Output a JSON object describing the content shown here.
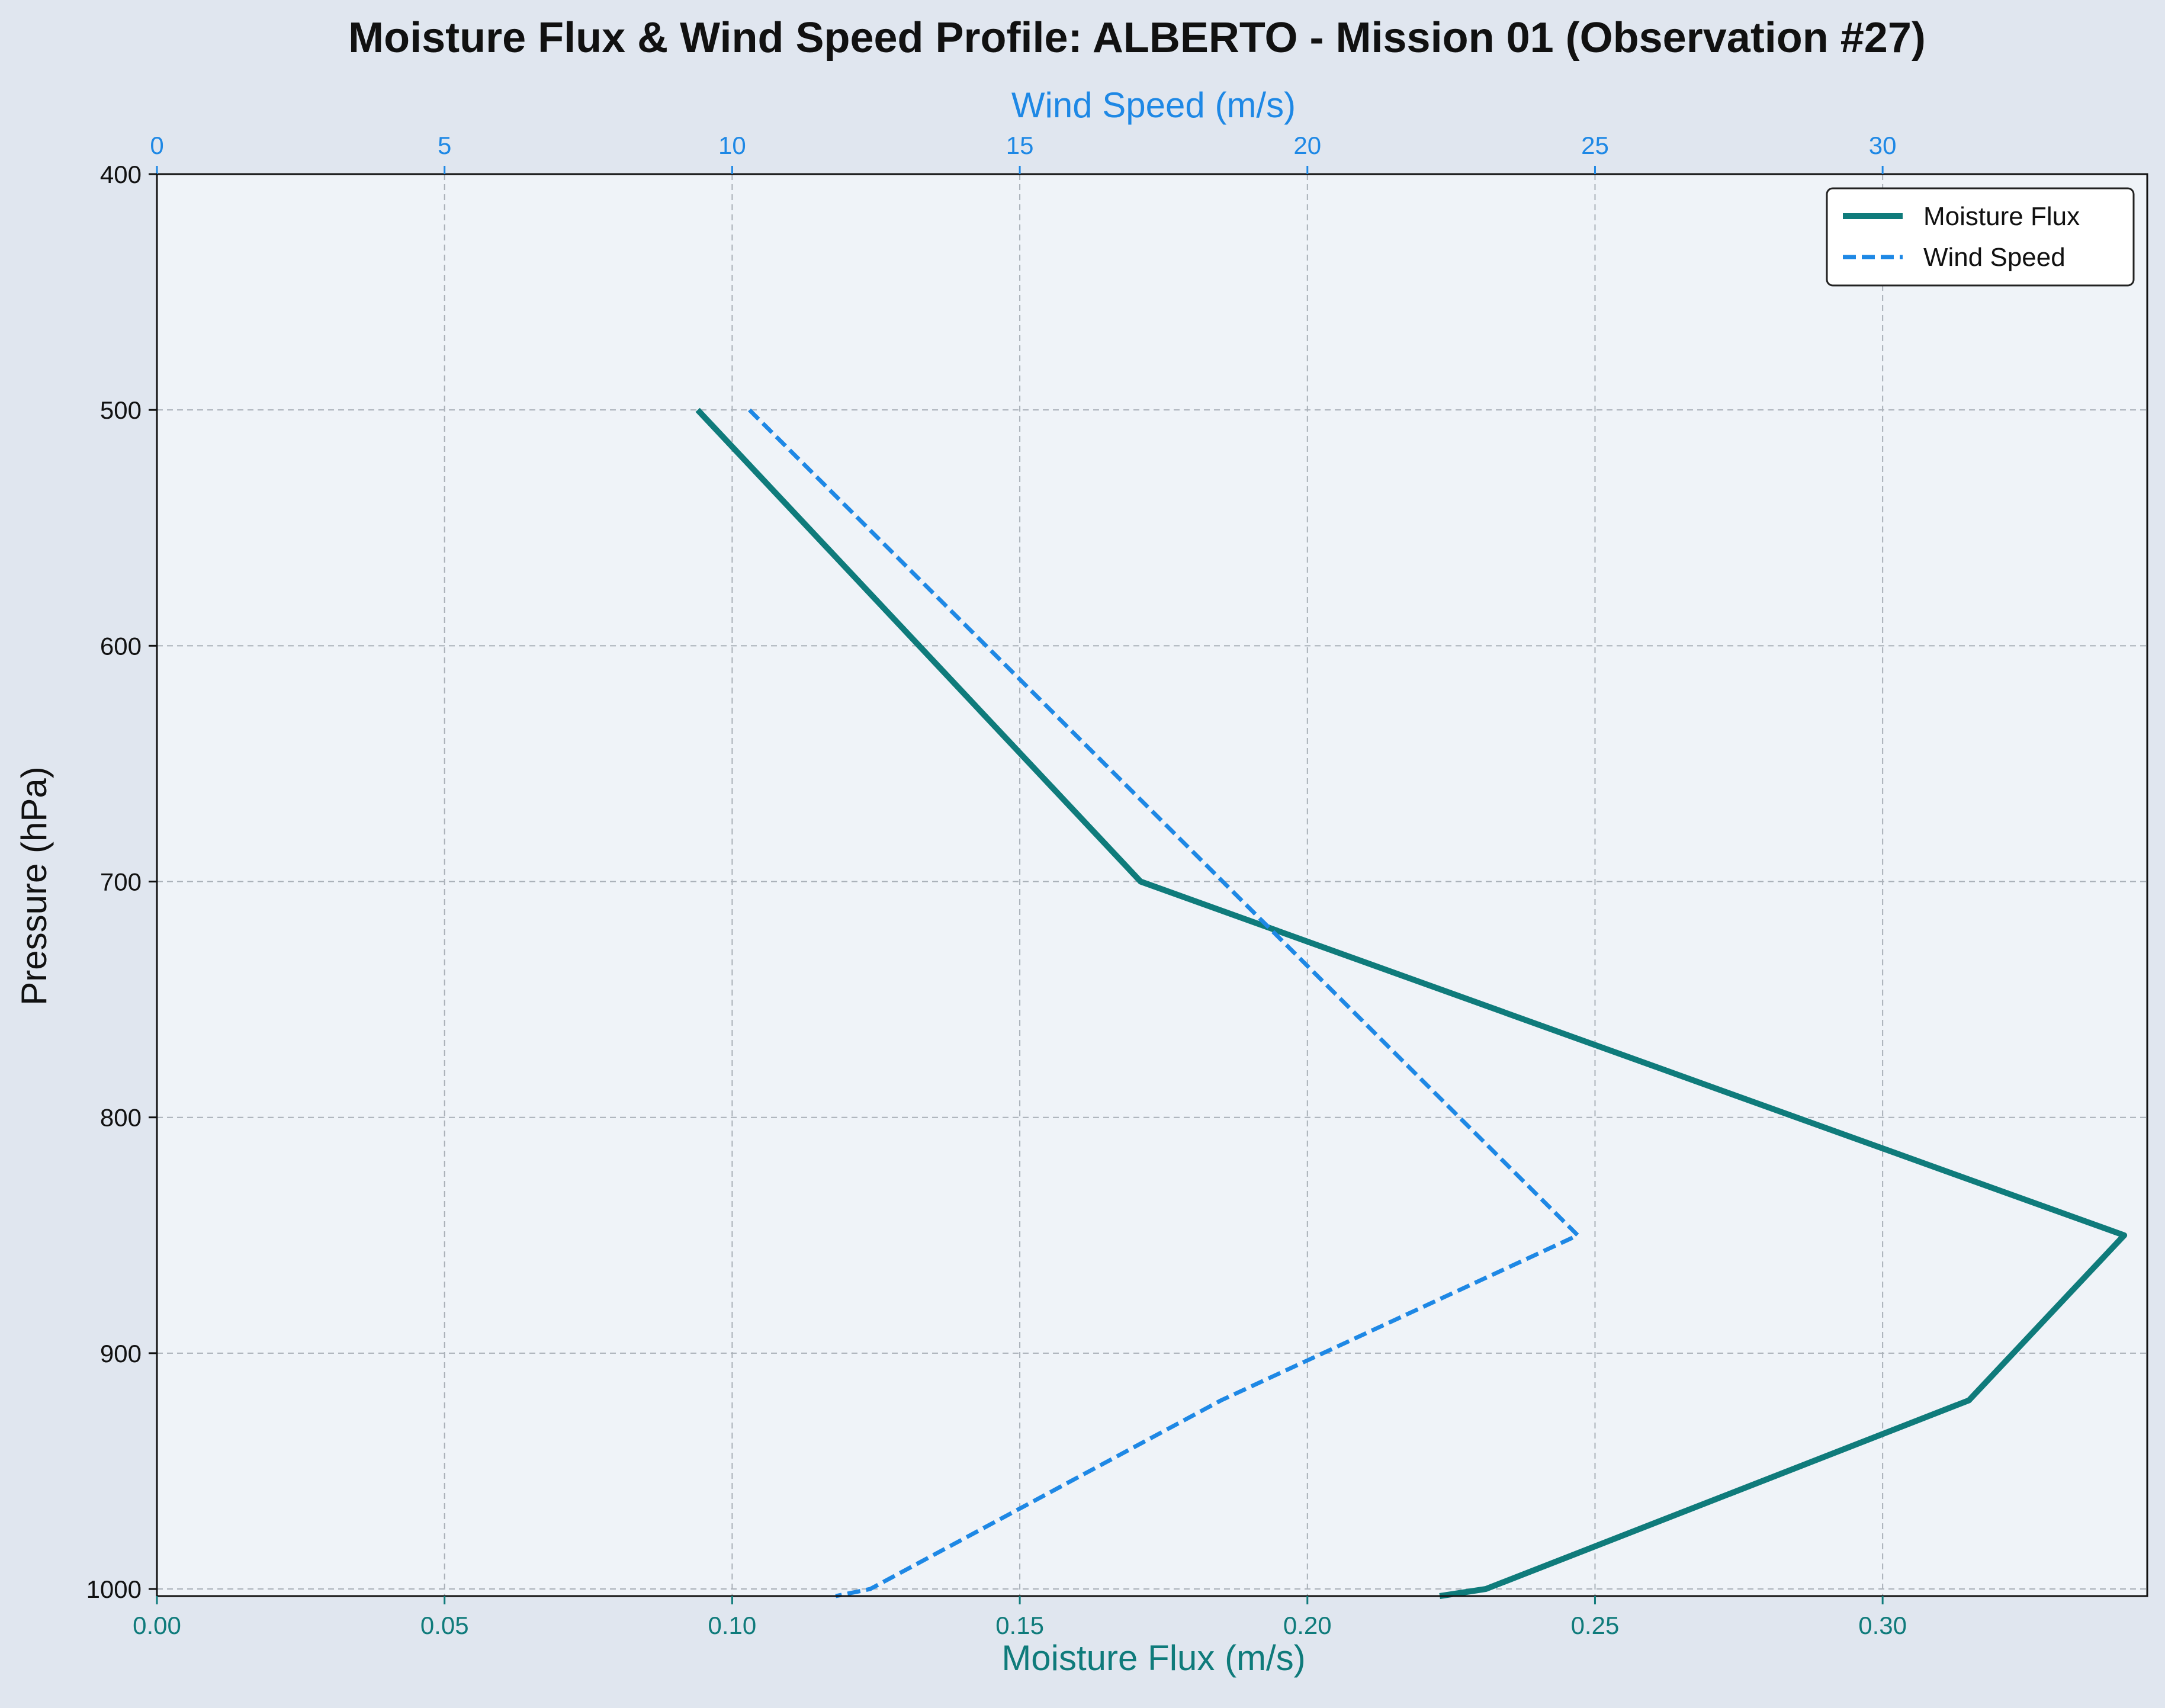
{
  "chart_data": {
    "type": "line",
    "title": "Moisture Flux & Wind Speed Profile: ALBERTO - Mission 01 (Observation #27)",
    "xlabel": "Moisture Flux (m/s)",
    "x2label": "Wind Speed (m/s)",
    "ylabel": "Pressure (hPa)",
    "xlim": [
      0.0,
      0.346
    ],
    "x2lim": [
      0,
      34.6
    ],
    "ylim": [
      1003,
      400
    ],
    "y_inverted": true,
    "x_ticks": [
      "0.00",
      "0.05",
      "0.10",
      "0.15",
      "0.20",
      "0.25",
      "0.30"
    ],
    "x_tick_values": [
      0.0,
      0.05,
      0.1,
      0.15,
      0.2,
      0.25,
      0.3
    ],
    "x2_ticks": [
      "0",
      "5",
      "10",
      "15",
      "20",
      "25",
      "30"
    ],
    "x2_tick_values": [
      0,
      5,
      10,
      15,
      20,
      25,
      30
    ],
    "y_ticks": [
      "400",
      "500",
      "600",
      "700",
      "800",
      "900",
      "1000"
    ],
    "y_tick_values": [
      400,
      500,
      600,
      700,
      800,
      900,
      1000
    ],
    "grid": true,
    "legend_position": "top-right",
    "series": [
      {
        "name": "Moisture Flux",
        "axis": "bottom",
        "color": "#0f7b7b",
        "style": "solid",
        "points": [
          {
            "pressure": 500,
            "value": 0.094
          },
          {
            "pressure": 700,
            "value": 0.171
          },
          {
            "pressure": 850,
            "value": 0.342
          },
          {
            "pressure": 920,
            "value": 0.315
          },
          {
            "pressure": 1000,
            "value": 0.231
          },
          {
            "pressure": 1003,
            "value": 0.223
          }
        ]
      },
      {
        "name": "Wind Speed",
        "axis": "top",
        "color": "#1e88e5",
        "style": "dashed",
        "points": [
          {
            "pressure": 500,
            "value": 10.3
          },
          {
            "pressure": 850,
            "value": 24.7
          },
          {
            "pressure": 920,
            "value": 18.5
          },
          {
            "pressure": 1000,
            "value": 12.4
          },
          {
            "pressure": 1003,
            "value": 11.8
          }
        ]
      }
    ]
  }
}
